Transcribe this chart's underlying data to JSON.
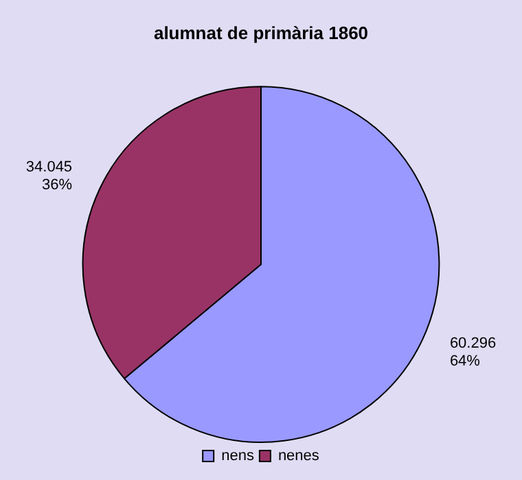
{
  "chart_data": {
    "type": "pie",
    "title": "alumnat de primària 1860",
    "categories": [
      "nens",
      "nenes"
    ],
    "values": [
      60296,
      34045
    ],
    "colors": [
      "#9999ff",
      "#993366"
    ],
    "value_labels": [
      "60.296\n64%",
      "34.045\n36%"
    ],
    "legend": "bottom"
  }
}
